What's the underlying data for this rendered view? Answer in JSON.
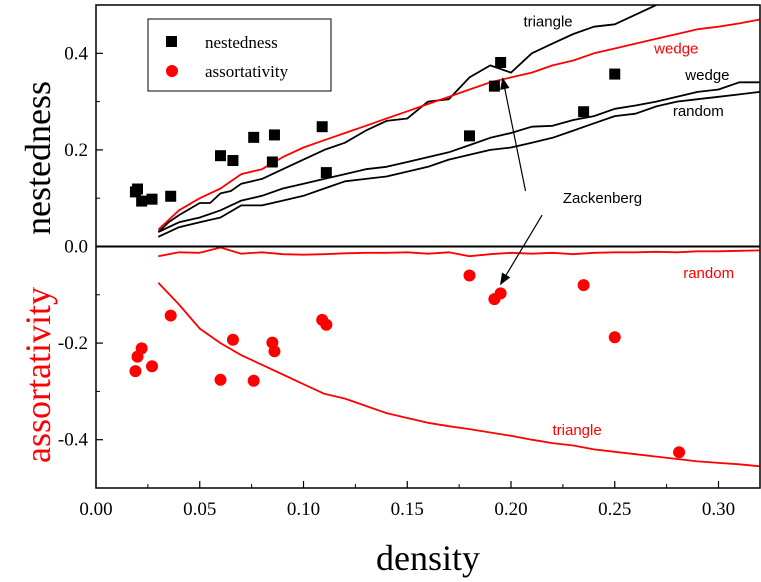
{
  "chart_data": {
    "type": "scatter",
    "xlabel": "density",
    "ylabel_top": "nestedness",
    "ylabel_bottom": "assortativity",
    "xlim": [
      0.0,
      0.32
    ],
    "ylim": [
      -0.5,
      0.5
    ],
    "x_ticks": [
      "0.00",
      "0.05",
      "0.10",
      "0.15",
      "0.20",
      "0.25",
      "0.30"
    ],
    "y_ticks": [
      "0.4",
      "0.2",
      "0.0",
      "-0.2",
      "-0.4"
    ],
    "legend": {
      "position": "top-left",
      "entries": [
        {
          "label": "nestedness",
          "marker": "square",
          "color": "#000000"
        },
        {
          "label": "assortativity",
          "marker": "circle",
          "color": "#ff0000"
        }
      ]
    },
    "series": [
      {
        "name": "nestedness",
        "kind": "points",
        "marker": "square",
        "color": "#000000",
        "points": [
          [
            0.019,
            0.113
          ],
          [
            0.02,
            0.119
          ],
          [
            0.022,
            0.094
          ],
          [
            0.027,
            0.098
          ],
          [
            0.036,
            0.104
          ],
          [
            0.06,
            0.188
          ],
          [
            0.066,
            0.178
          ],
          [
            0.076,
            0.226
          ],
          [
            0.085,
            0.175
          ],
          [
            0.086,
            0.231
          ],
          [
            0.109,
            0.248
          ],
          [
            0.111,
            0.153
          ],
          [
            0.18,
            0.229
          ],
          [
            0.192,
            0.332
          ],
          [
            0.195,
            0.381
          ],
          [
            0.235,
            0.279
          ],
          [
            0.25,
            0.357
          ]
        ]
      },
      {
        "name": "assortativity",
        "kind": "points",
        "marker": "circle",
        "color": "#ff0000",
        "points": [
          [
            0.019,
            -0.258
          ],
          [
            0.02,
            -0.228
          ],
          [
            0.022,
            -0.211
          ],
          [
            0.027,
            -0.248
          ],
          [
            0.036,
            -0.143
          ],
          [
            0.06,
            -0.276
          ],
          [
            0.066,
            -0.193
          ],
          [
            0.076,
            -0.278
          ],
          [
            0.085,
            -0.199
          ],
          [
            0.086,
            -0.217
          ],
          [
            0.109,
            -0.152
          ],
          [
            0.111,
            -0.162
          ],
          [
            0.18,
            -0.06
          ],
          [
            0.192,
            -0.109
          ],
          [
            0.195,
            -0.097
          ],
          [
            0.235,
            -0.08
          ],
          [
            0.25,
            -0.188
          ],
          [
            0.281,
            -0.426
          ]
        ]
      },
      {
        "name": "triangle",
        "kind": "line",
        "color": "#000000",
        "points": [
          [
            0.03,
            0.03
          ],
          [
            0.035,
            0.05
          ],
          [
            0.04,
            0.065
          ],
          [
            0.05,
            0.09
          ],
          [
            0.055,
            0.09
          ],
          [
            0.06,
            0.11
          ],
          [
            0.065,
            0.115
          ],
          [
            0.07,
            0.13
          ],
          [
            0.08,
            0.14
          ],
          [
            0.09,
            0.16
          ],
          [
            0.1,
            0.18
          ],
          [
            0.11,
            0.2
          ],
          [
            0.12,
            0.215
          ],
          [
            0.13,
            0.24
          ],
          [
            0.14,
            0.26
          ],
          [
            0.15,
            0.265
          ],
          [
            0.16,
            0.3
          ],
          [
            0.17,
            0.305
          ],
          [
            0.18,
            0.35
          ],
          [
            0.19,
            0.375
          ],
          [
            0.2,
            0.36
          ],
          [
            0.21,
            0.4
          ],
          [
            0.22,
            0.42
          ],
          [
            0.23,
            0.44
          ],
          [
            0.24,
            0.455
          ],
          [
            0.25,
            0.46
          ],
          [
            0.26,
            0.48
          ],
          [
            0.27,
            0.5
          ]
        ]
      },
      {
        "name": "wedge",
        "kind": "line",
        "color": "#ff0000",
        "points": [
          [
            0.03,
            0.035
          ],
          [
            0.04,
            0.075
          ],
          [
            0.05,
            0.1
          ],
          [
            0.06,
            0.12
          ],
          [
            0.07,
            0.15
          ],
          [
            0.08,
            0.16
          ],
          [
            0.09,
            0.185
          ],
          [
            0.1,
            0.205
          ],
          [
            0.11,
            0.22
          ],
          [
            0.12,
            0.235
          ],
          [
            0.13,
            0.25
          ],
          [
            0.14,
            0.265
          ],
          [
            0.15,
            0.28
          ],
          [
            0.16,
            0.295
          ],
          [
            0.17,
            0.31
          ],
          [
            0.18,
            0.325
          ],
          [
            0.19,
            0.34
          ],
          [
            0.2,
            0.35
          ],
          [
            0.21,
            0.36
          ],
          [
            0.22,
            0.375
          ],
          [
            0.23,
            0.385
          ],
          [
            0.24,
            0.4
          ],
          [
            0.25,
            0.41
          ],
          [
            0.26,
            0.42
          ],
          [
            0.27,
            0.43
          ],
          [
            0.28,
            0.44
          ],
          [
            0.29,
            0.45
          ],
          [
            0.3,
            0.455
          ],
          [
            0.31,
            0.462
          ],
          [
            0.32,
            0.47
          ]
        ]
      },
      {
        "name": "wedge",
        "kind": "line",
        "color": "#000000",
        "points": [
          [
            0.03,
            0.03
          ],
          [
            0.04,
            0.05
          ],
          [
            0.05,
            0.06
          ],
          [
            0.06,
            0.075
          ],
          [
            0.07,
            0.095
          ],
          [
            0.08,
            0.105
          ],
          [
            0.09,
            0.12
          ],
          [
            0.1,
            0.13
          ],
          [
            0.11,
            0.14
          ],
          [
            0.12,
            0.15
          ],
          [
            0.13,
            0.16
          ],
          [
            0.14,
            0.165
          ],
          [
            0.15,
            0.175
          ],
          [
            0.16,
            0.185
          ],
          [
            0.17,
            0.195
          ],
          [
            0.18,
            0.21
          ],
          [
            0.19,
            0.225
          ],
          [
            0.2,
            0.235
          ],
          [
            0.21,
            0.248
          ],
          [
            0.22,
            0.25
          ],
          [
            0.23,
            0.262
          ],
          [
            0.24,
            0.27
          ],
          [
            0.25,
            0.285
          ],
          [
            0.26,
            0.292
          ],
          [
            0.27,
            0.3
          ],
          [
            0.28,
            0.31
          ],
          [
            0.29,
            0.32
          ],
          [
            0.3,
            0.325
          ],
          [
            0.31,
            0.34
          ],
          [
            0.32,
            0.34
          ]
        ]
      },
      {
        "name": "random",
        "kind": "line",
        "color": "#000000",
        "points": [
          [
            0.03,
            0.02
          ],
          [
            0.04,
            0.04
          ],
          [
            0.05,
            0.05
          ],
          [
            0.06,
            0.06
          ],
          [
            0.07,
            0.085
          ],
          [
            0.08,
            0.085
          ],
          [
            0.09,
            0.095
          ],
          [
            0.1,
            0.105
          ],
          [
            0.11,
            0.12
          ],
          [
            0.12,
            0.135
          ],
          [
            0.13,
            0.14
          ],
          [
            0.14,
            0.145
          ],
          [
            0.15,
            0.155
          ],
          [
            0.16,
            0.165
          ],
          [
            0.17,
            0.18
          ],
          [
            0.18,
            0.19
          ],
          [
            0.19,
            0.2
          ],
          [
            0.2,
            0.205
          ],
          [
            0.21,
            0.215
          ],
          [
            0.22,
            0.225
          ],
          [
            0.23,
            0.24
          ],
          [
            0.24,
            0.255
          ],
          [
            0.25,
            0.27
          ],
          [
            0.26,
            0.275
          ],
          [
            0.27,
            0.29
          ],
          [
            0.28,
            0.3
          ],
          [
            0.29,
            0.305
          ],
          [
            0.3,
            0.31
          ],
          [
            0.31,
            0.315
          ],
          [
            0.32,
            0.32
          ]
        ]
      },
      {
        "name": "random",
        "kind": "line",
        "color": "#ff0000",
        "points": [
          [
            0.03,
            -0.02
          ],
          [
            0.04,
            -0.012
          ],
          [
            0.05,
            -0.013
          ],
          [
            0.06,
            -0.002
          ],
          [
            0.07,
            -0.015
          ],
          [
            0.08,
            -0.012
          ],
          [
            0.09,
            -0.016
          ],
          [
            0.1,
            -0.017
          ],
          [
            0.11,
            -0.016
          ],
          [
            0.12,
            -0.014
          ],
          [
            0.13,
            -0.013
          ],
          [
            0.14,
            -0.013
          ],
          [
            0.15,
            -0.012
          ],
          [
            0.16,
            -0.015
          ],
          [
            0.17,
            -0.012
          ],
          [
            0.18,
            -0.02
          ],
          [
            0.19,
            -0.016
          ],
          [
            0.2,
            -0.013
          ],
          [
            0.21,
            -0.015
          ],
          [
            0.22,
            -0.013
          ],
          [
            0.23,
            -0.016
          ],
          [
            0.24,
            -0.013
          ],
          [
            0.25,
            -0.012
          ],
          [
            0.26,
            -0.012
          ],
          [
            0.27,
            -0.011
          ],
          [
            0.28,
            -0.012
          ],
          [
            0.29,
            -0.01
          ],
          [
            0.3,
            -0.01
          ],
          [
            0.31,
            -0.009
          ],
          [
            0.32,
            -0.008
          ]
        ]
      },
      {
        "name": "triangle",
        "kind": "line",
        "color": "#ff0000",
        "points": [
          [
            0.03,
            -0.075
          ],
          [
            0.04,
            -0.12
          ],
          [
            0.05,
            -0.17
          ],
          [
            0.06,
            -0.2
          ],
          [
            0.07,
            -0.225
          ],
          [
            0.08,
            -0.245
          ],
          [
            0.09,
            -0.265
          ],
          [
            0.1,
            -0.285
          ],
          [
            0.11,
            -0.305
          ],
          [
            0.12,
            -0.315
          ],
          [
            0.13,
            -0.33
          ],
          [
            0.14,
            -0.345
          ],
          [
            0.15,
            -0.355
          ],
          [
            0.16,
            -0.365
          ],
          [
            0.17,
            -0.372
          ],
          [
            0.18,
            -0.378
          ],
          [
            0.19,
            -0.385
          ],
          [
            0.2,
            -0.392
          ],
          [
            0.21,
            -0.4
          ],
          [
            0.22,
            -0.407
          ],
          [
            0.23,
            -0.412
          ],
          [
            0.24,
            -0.42
          ],
          [
            0.25,
            -0.425
          ],
          [
            0.26,
            -0.43
          ],
          [
            0.27,
            -0.435
          ],
          [
            0.28,
            -0.44
          ],
          [
            0.29,
            -0.445
          ],
          [
            0.3,
            -0.448
          ],
          [
            0.31,
            -0.451
          ],
          [
            0.32,
            -0.455
          ]
        ]
      }
    ],
    "annotations": [
      {
        "text": "triangle",
        "color": "#000000",
        "at": [
          0.206,
          0.455
        ]
      },
      {
        "text": "wedge",
        "color": "#ff0000",
        "at": [
          0.269,
          0.4
        ]
      },
      {
        "text": "wedge",
        "color": "#000000",
        "at": [
          0.284,
          0.345
        ]
      },
      {
        "text": "random",
        "color": "#000000",
        "at": [
          0.278,
          0.27
        ]
      },
      {
        "text": "Zackenberg",
        "color": "#000000",
        "at": [
          0.225,
          0.09
        ]
      },
      {
        "text": "random",
        "color": "#ff0000",
        "at": [
          0.283,
          -0.065
        ]
      },
      {
        "text": "triangle",
        "color": "#ff0000",
        "at": [
          0.22,
          -0.39
        ]
      }
    ],
    "arrows": [
      {
        "from": [
          0.207,
          0.115
        ],
        "to": [
          0.196,
          0.348
        ]
      },
      {
        "from": [
          0.215,
          0.065
        ],
        "to": [
          0.195,
          -0.078
        ]
      }
    ]
  }
}
